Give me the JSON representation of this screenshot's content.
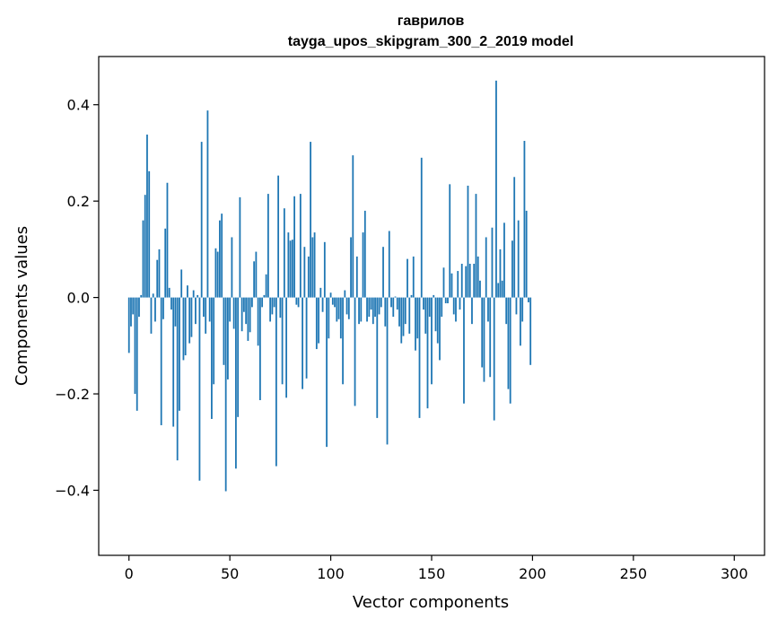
{
  "chart_data": {
    "type": "bar",
    "title_line1": "гаврилов",
    "title_line2": "tayga_upos_skipgram_300_2_2019 model",
    "xlabel": "Vector components",
    "ylabel": "Components values",
    "xlim": [
      -15,
      315
    ],
    "ylim": [
      -0.535,
      0.5
    ],
    "xticks": [
      0,
      50,
      100,
      150,
      200,
      250,
      300
    ],
    "xtick_labels": [
      "0",
      "50",
      "100",
      "150",
      "200",
      "250",
      "300"
    ],
    "yticks": [
      -0.4,
      -0.2,
      0.0,
      0.2,
      0.4
    ],
    "ytick_labels": [
      "−0.4",
      "−0.2",
      "0.0",
      "0.2",
      "0.4"
    ],
    "grid": false,
    "bar_color": "#1f77b4",
    "values": [
      -0.115,
      -0.06,
      -0.035,
      -0.2,
      -0.235,
      -0.04,
      0.005,
      0.16,
      0.213,
      0.338,
      0.262,
      -0.075,
      0.008,
      -0.05,
      0.078,
      0.1,
      -0.265,
      -0.045,
      0.143,
      0.238,
      0.02,
      -0.025,
      -0.268,
      -0.06,
      -0.338,
      -0.235,
      0.058,
      -0.13,
      -0.12,
      0.025,
      -0.095,
      -0.082,
      0.015,
      -0.055,
      0.005,
      -0.38,
      0.323,
      -0.04,
      -0.075,
      0.388,
      -0.05,
      -0.252,
      -0.18,
      0.102,
      0.095,
      0.16,
      0.174,
      -0.14,
      -0.402,
      -0.17,
      -0.05,
      0.125,
      -0.065,
      -0.355,
      -0.248,
      0.208,
      -0.07,
      -0.03,
      -0.055,
      -0.09,
      -0.072,
      -0.02,
      0.075,
      0.095,
      -0.1,
      -0.213,
      -0.02,
      0.005,
      0.048,
      0.215,
      -0.05,
      -0.035,
      -0.02,
      -0.35,
      0.253,
      -0.042,
      -0.18,
      0.185,
      -0.208,
      0.135,
      0.118,
      0.12,
      0.21,
      -0.015,
      -0.02,
      0.215,
      -0.19,
      0.105,
      -0.168,
      0.085,
      0.323,
      0.125,
      0.135,
      -0.107,
      -0.095,
      0.02,
      -0.03,
      0.115,
      -0.31,
      -0.085,
      0.01,
      -0.015,
      -0.02,
      -0.05,
      -0.045,
      -0.085,
      -0.18,
      0.015,
      -0.035,
      -0.045,
      0.125,
      0.295,
      -0.225,
      0.085,
      -0.055,
      -0.05,
      0.135,
      0.18,
      -0.05,
      -0.04,
      -0.025,
      -0.055,
      -0.04,
      -0.25,
      -0.035,
      -0.02,
      0.105,
      -0.06,
      -0.305,
      0.138,
      -0.02,
      -0.04,
      0.002,
      -0.025,
      -0.06,
      -0.095,
      -0.08,
      -0.055,
      0.08,
      -0.075,
      0.005,
      0.085,
      -0.11,
      -0.085,
      -0.25,
      0.29,
      -0.025,
      -0.075,
      -0.23,
      -0.04,
      -0.18,
      0.005,
      -0.07,
      -0.095,
      -0.13,
      -0.04,
      0.062,
      -0.012,
      -0.012,
      0.235,
      0.05,
      -0.035,
      -0.05,
      0.055,
      -0.025,
      0.07,
      -0.22,
      0.065,
      0.232,
      0.07,
      -0.055,
      0.07,
      0.215,
      0.085,
      0.035,
      -0.145,
      -0.175,
      0.125,
      -0.05,
      -0.165,
      0.145,
      -0.255,
      0.45,
      0.03,
      0.1,
      0.035,
      0.155,
      -0.055,
      -0.19,
      -0.22,
      0.118,
      0.25,
      -0.035,
      0.16,
      -0.1,
      -0.05,
      0.325,
      0.18,
      -0.01,
      -0.14
    ]
  }
}
